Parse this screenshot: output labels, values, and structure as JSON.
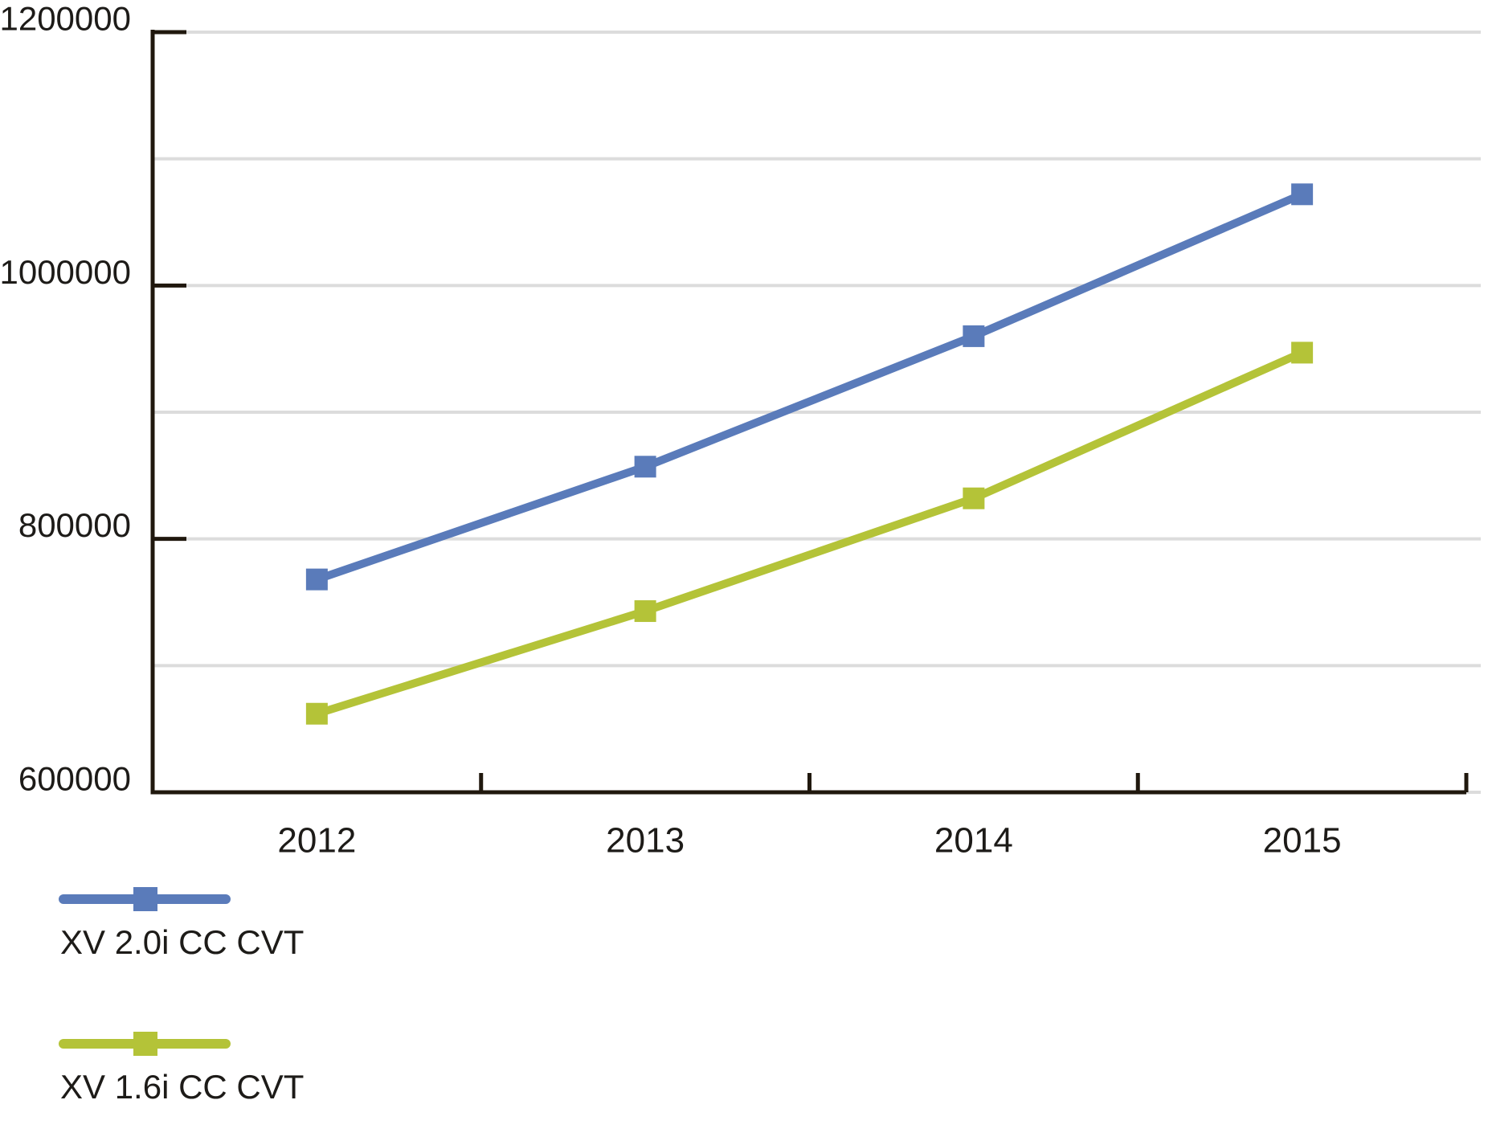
{
  "chart_data": {
    "type": "line",
    "title": "",
    "xlabel": "",
    "ylabel": "",
    "categories": [
      "2012",
      "2013",
      "2014",
      "2015"
    ],
    "series": [
      {
        "name": "XV 2.0i CC CVT",
        "color": "#5a7bba",
        "marker": "square",
        "values": [
          768000,
          857000,
          960000,
          1072000
        ]
      },
      {
        "name": "XV 1.6i CC CVT",
        "color": "#b4c338",
        "marker": "square",
        "values": [
          662000,
          743000,
          832000,
          947000
        ]
      }
    ],
    "ylim": [
      600000,
      1200000
    ],
    "ytick_values": [
      600000,
      800000,
      1000000,
      1200000
    ],
    "ytick_labels": [
      "600000",
      "800000",
      "1000000",
      "1200000"
    ],
    "gridline_step": 100000,
    "grid": true,
    "legend_position": "bottom-left",
    "colors": {
      "axis": "#20180e",
      "gridline": "#dcdcdc",
      "text": "#1d1b18",
      "background": "#ffffff"
    }
  }
}
